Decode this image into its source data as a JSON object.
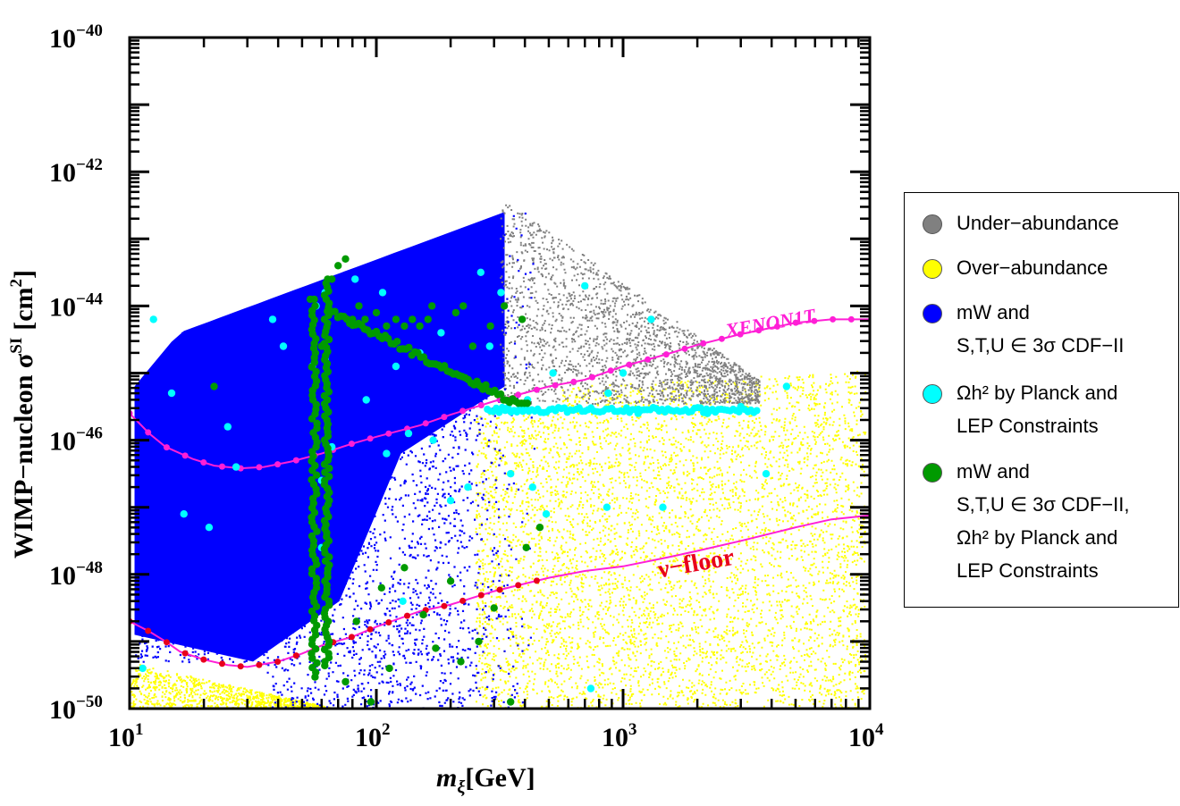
{
  "chart_data": {
    "type": "scatter",
    "title": "",
    "xlabel_base": "m",
    "xlabel_sub": "ξ",
    "xlabel_unit": "[GeV]",
    "ylabel_main": "WIMP−nucleon σ",
    "ylabel_sup": "SI",
    "ylabel_unit_pre": "[cm",
    "ylabel_unit_sup": "2",
    "ylabel_unit_post": "]",
    "x_scale": "log",
    "y_scale": "log",
    "xlim": [
      10,
      10000
    ],
    "ylim": [
      1e-50,
      1e-40
    ],
    "x_ticks": [
      {
        "value": 10,
        "base": "10",
        "exp": "1"
      },
      {
        "value": 100,
        "base": "10",
        "exp": "2"
      },
      {
        "value": 1000,
        "base": "10",
        "exp": "3"
      },
      {
        "value": 10000,
        "base": "10",
        "exp": "4"
      }
    ],
    "y_ticks": [
      {
        "value": 1e-50,
        "base": "10",
        "exp": "−50"
      },
      {
        "value": 1e-48,
        "base": "10",
        "exp": "−48"
      },
      {
        "value": 1e-46,
        "base": "10",
        "exp": "−46"
      },
      {
        "value": 1e-44,
        "base": "10",
        "exp": "−44"
      },
      {
        "value": 1e-42,
        "base": "10",
        "exp": "−42"
      },
      {
        "value": 1e-40,
        "base": "10",
        "exp": "−40"
      }
    ],
    "series": [
      {
        "name": "Under−abundance",
        "color": "#808080",
        "kind": "dense-scatter"
      },
      {
        "name": "Over−abundance",
        "color": "#ffff00",
        "kind": "dense-scatter"
      },
      {
        "name": "mW and S,T,U ∈ 3σ CDF−II",
        "color": "#0000ff",
        "kind": "dense-scatter"
      },
      {
        "name": "Ωh2 by Planck and LEP Constraints",
        "color": "#00ffff",
        "kind": "scatter",
        "points": [
          [
            11.3,
            -49.4
          ],
          [
            12.5,
            -44.2
          ],
          [
            14.8,
            -45.3
          ],
          [
            16.6,
            -47.1
          ],
          [
            21,
            -47.3
          ],
          [
            25,
            -45.8
          ],
          [
            27,
            -46.4
          ],
          [
            38,
            -44.2
          ],
          [
            42,
            -44.6
          ],
          [
            55,
            -44.9
          ],
          [
            57,
            -44.0
          ],
          [
            60,
            -46.6
          ],
          [
            60,
            -47.6
          ],
          [
            62,
            -44.8
          ],
          [
            62,
            -43.8
          ],
          [
            66,
            -46.1
          ],
          [
            82,
            -43.6
          ],
          [
            91,
            -45.4
          ],
          [
            106,
            -43.8
          ],
          [
            110,
            -46.2
          ],
          [
            120,
            -44.9
          ],
          [
            128,
            -48.4
          ],
          [
            135,
            -45.9
          ],
          [
            150,
            -44.7
          ],
          [
            170,
            -46.0
          ],
          [
            183,
            -44.4
          ],
          [
            200,
            -46.9
          ],
          [
            235,
            -46.7
          ],
          [
            265,
            -43.5
          ],
          [
            288,
            -44.6
          ],
          [
            320,
            -43.8
          ],
          [
            350,
            -46.5
          ],
          [
            410,
            -45.4
          ],
          [
            430,
            -46.7
          ],
          [
            488,
            -47.1
          ],
          [
            520,
            -45.0
          ],
          [
            700,
            -43.7
          ],
          [
            740,
            -49.7
          ],
          [
            860,
            -47.0
          ],
          [
            870,
            -45.3
          ],
          [
            1000,
            -45.0
          ],
          [
            1150,
            -45.6
          ],
          [
            1300,
            -44.2
          ],
          [
            1450,
            -47.0
          ],
          [
            2200,
            -45.6
          ],
          [
            3000,
            -45.5
          ],
          [
            3800,
            -46.5
          ],
          [
            4600,
            -45.2
          ]
        ]
      },
      {
        "name": "mW and S,T,U ∈ 3σ CDF−II, Ωh2 by Planck and LEP Constraints",
        "color": "#009a00",
        "kind": "scatter",
        "points": [
          [
            22,
            -45.2
          ],
          [
            54,
            -43.9
          ],
          [
            56,
            -43.9
          ],
          [
            60,
            -44.6
          ],
          [
            66,
            -43.6
          ],
          [
            70,
            -43.4
          ],
          [
            75,
            -43.3
          ],
          [
            80,
            -44.2
          ],
          [
            85,
            -44.0
          ],
          [
            90,
            -44.2
          ],
          [
            100,
            -44.1
          ],
          [
            110,
            -44.3
          ],
          [
            120,
            -44.2
          ],
          [
            130,
            -44.3
          ],
          [
            140,
            -44.2
          ],
          [
            150,
            -44.3
          ],
          [
            162,
            -44.2
          ],
          [
            168,
            -44.0
          ],
          [
            210,
            -44.1
          ],
          [
            225,
            -44.0
          ],
          [
            246,
            -44.6
          ],
          [
            290,
            -44.3
          ],
          [
            330,
            -44.0
          ],
          [
            390,
            -44.2
          ],
          [
            75,
            -49.6
          ],
          [
            83,
            -48.7
          ],
          [
            95,
            -49.9
          ],
          [
            105,
            -48.2
          ],
          [
            113,
            -49.4
          ],
          [
            130,
            -47.9
          ],
          [
            155,
            -48.6
          ],
          [
            174,
            -49.1
          ],
          [
            200,
            -48.1
          ],
          [
            220,
            -49.3
          ],
          [
            260,
            -49.0
          ],
          [
            300,
            -48.5
          ],
          [
            350,
            -49.9
          ],
          [
            405,
            -47.6
          ],
          [
            460,
            -47.3
          ]
        ]
      }
    ],
    "curves": [
      {
        "name": "XENON1T",
        "color": "#ff1fd6",
        "points": [
          [
            10,
            -45.6
          ],
          [
            12,
            -45.9
          ],
          [
            14,
            -46.1
          ],
          [
            18,
            -46.28
          ],
          [
            22,
            -46.38
          ],
          [
            28,
            -46.42
          ],
          [
            35,
            -46.4
          ],
          [
            45,
            -46.32
          ],
          [
            60,
            -46.2
          ],
          [
            80,
            -46.05
          ],
          [
            100,
            -45.95
          ],
          [
            150,
            -45.78
          ],
          [
            200,
            -45.62
          ],
          [
            300,
            -45.42
          ],
          [
            500,
            -45.2
          ],
          [
            700,
            -45.1
          ],
          [
            1000,
            -44.9
          ],
          [
            1500,
            -44.72
          ],
          [
            2000,
            -44.58
          ],
          [
            3000,
            -44.42
          ],
          [
            5000,
            -44.25
          ],
          [
            7000,
            -44.2
          ],
          [
            10000,
            -44.2
          ]
        ]
      },
      {
        "name": "ν−floor",
        "color": "#e8001c",
        "points": [
          [
            10,
            -48.7
          ],
          [
            12,
            -48.85
          ],
          [
            14,
            -49.0
          ],
          [
            16,
            -49.15
          ],
          [
            20,
            -49.27
          ],
          [
            25,
            -49.35
          ],
          [
            30,
            -49.38
          ],
          [
            40,
            -49.3
          ],
          [
            50,
            -49.18
          ],
          [
            60,
            -49.06
          ],
          [
            80,
            -48.93
          ],
          [
            100,
            -48.78
          ],
          [
            150,
            -48.55
          ],
          [
            200,
            -48.45
          ],
          [
            300,
            -48.25
          ],
          [
            500,
            -48.05
          ],
          [
            700,
            -47.95
          ],
          [
            1000,
            -47.88
          ],
          [
            1500,
            -47.75
          ],
          [
            2000,
            -47.65
          ],
          [
            3000,
            -47.5
          ],
          [
            5000,
            -47.3
          ],
          [
            7000,
            -47.18
          ],
          [
            10000,
            -47.12
          ]
        ]
      }
    ],
    "annotations": [
      {
        "text": "XENON1T",
        "x": 4000,
        "y": -44.35,
        "rotate_deg": -10
      },
      {
        "text": "ν−floor",
        "x": 2000,
        "y": -47.95,
        "rotate_deg": -10
      }
    ],
    "legend_position": "right"
  },
  "legend": {
    "items": [
      {
        "lines": [
          "Under−abundance"
        ],
        "color": "#808080"
      },
      {
        "lines": [
          "Over−abundance"
        ],
        "color": "#ffff00"
      },
      {
        "lines": [
          "mW and",
          "S,T,U ∈ 3σ CDF−II"
        ],
        "color": "#0000ff"
      },
      {
        "lines": [
          "Ωh² by Planck and",
          "LEP Constraints"
        ],
        "color": "#00ffff"
      },
      {
        "lines": [
          "mW and",
          "S,T,U ∈ 3σ CDF−II,",
          "Ωh² by Planck and",
          "LEP Constraints"
        ],
        "color": "#009a00"
      }
    ]
  }
}
